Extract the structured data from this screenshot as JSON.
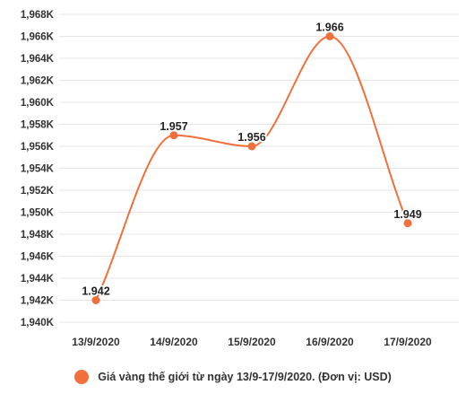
{
  "chart_data": {
    "type": "line",
    "categories": [
      "13/9/2020",
      "14/9/2020",
      "15/9/2020",
      "16/9/2020",
      "17/9/2020"
    ],
    "series": [
      {
        "name": "Giá vàng thế giới từ ngày 13/9-17/9/2020. (Đơn vị: USD)",
        "values": [
          1942,
          1957,
          1956,
          1966,
          1949
        ],
        "data_labels": [
          "1.942",
          "1.957",
          "1.956",
          "1.966",
          "1.949"
        ]
      }
    ],
    "yticks": [
      "1,940K",
      "1,942K",
      "1,944K",
      "1,946K",
      "1,948K",
      "1,950K",
      "1,952K",
      "1,954K",
      "1,956K",
      "1,958K",
      "1,960K",
      "1,962K",
      "1,964K",
      "1,966K",
      "1,968K"
    ],
    "ylim": [
      1940,
      1968
    ],
    "grid": true,
    "legend_position": "bottom",
    "colors": {
      "series": "#f26f3b",
      "grid": "#e6e6e6",
      "text": "#333333"
    }
  }
}
